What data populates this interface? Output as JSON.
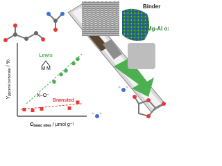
{
  "images": {
    "binder_label": "Binder",
    "oxide_label": "Mg-Al oxide"
  },
  "chart_data": {
    "type": "scatter",
    "y_label": "Y",
    "y_label_sub": "glycerol carbonate",
    "y_label_unit": " / %",
    "x_label": "C",
    "x_label_sub": "basic sites",
    "x_label_unit": " / μmol g⁻¹",
    "xlim": [
      0,
      10
    ],
    "ylim": [
      0,
      10
    ],
    "site_labels": {
      "lewis": "M    M",
      "bronsted": "X–O⁻"
    },
    "series": [
      {
        "name": "Lewis",
        "color": "#4caf50",
        "marker": "circle",
        "x": [
          5.3,
          6.3,
          7.0,
          8.1,
          8.7
        ],
        "values": [
          4.7,
          5.7,
          6.2,
          7.2,
          7.8
        ]
      },
      {
        "name": "Brønsted",
        "color": "#e53935",
        "marker": "square",
        "x": [
          1.0,
          2.2,
          3.5,
          7.5,
          8.7
        ],
        "values": [
          0.9,
          0.8,
          1.0,
          1.1,
          1.9
        ]
      }
    ]
  }
}
